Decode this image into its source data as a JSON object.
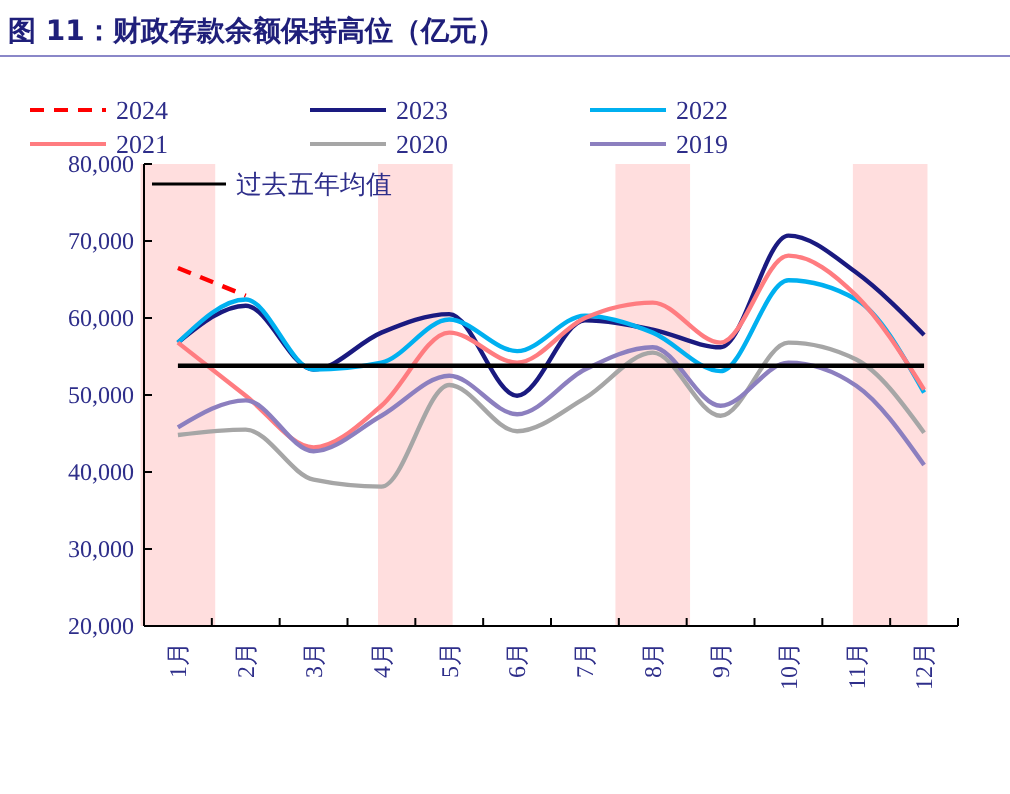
{
  "chart_data": {
    "type": "line",
    "title": "图 11：财政存款余额保持高位（亿元）",
    "categories": [
      "1月",
      "2月",
      "3月",
      "4月",
      "5月",
      "6月",
      "7月",
      "8月",
      "9月",
      "10月",
      "11月",
      "12月"
    ],
    "series": [
      {
        "name": "2024",
        "color": "#ff0000",
        "line_style": "dashed",
        "values": [
          66500,
          62900,
          null,
          null,
          null,
          null,
          null,
          null,
          null,
          null,
          null,
          null
        ]
      },
      {
        "name": "2023",
        "color": "#1a1a80",
        "values": [
          56800,
          61600,
          53300,
          58100,
          60500,
          49900,
          59700,
          58500,
          56200,
          70700,
          65900,
          57800
        ]
      },
      {
        "name": "2022",
        "color": "#00b0f0",
        "values": [
          56800,
          62400,
          53300,
          54200,
          59800,
          55700,
          60300,
          58100,
          53100,
          64900,
          62400,
          50300
        ]
      },
      {
        "name": "2021",
        "color": "#ff7c80",
        "values": [
          56800,
          49900,
          43200,
          48600,
          58100,
          54200,
          60000,
          62000,
          56800,
          68100,
          62900,
          50700
        ]
      },
      {
        "name": "2020",
        "color": "#a6a6a6",
        "values": [
          44800,
          45500,
          39000,
          38100,
          51300,
          45300,
          49600,
          55500,
          47300,
          56800,
          54600,
          45100
        ]
      },
      {
        "name": "2019",
        "color": "#8c7fbf",
        "values": [
          45800,
          49300,
          42700,
          47300,
          52500,
          47500,
          53300,
          56200,
          48600,
          54200,
          51200,
          40900
        ]
      },
      {
        "name": "过去五年均值",
        "color": "#000000",
        "values": [
          53800,
          53800,
          53800,
          53800,
          53800,
          53800,
          53800,
          53800,
          53800,
          53800,
          53800,
          53800
        ]
      }
    ],
    "ylim": [
      20000,
      80000
    ],
    "yticks": [
      {
        "value": 20000,
        "label": "20,000"
      },
      {
        "value": 30000,
        "label": "30,000"
      },
      {
        "value": 40000,
        "label": "40,000"
      },
      {
        "value": 50000,
        "label": "50,000"
      },
      {
        "value": 60000,
        "label": "60,000"
      },
      {
        "value": 70000,
        "label": "70,000"
      },
      {
        "value": 80000,
        "label": "80,000"
      }
    ],
    "bands": [
      {
        "axis": "x",
        "from": "1月",
        "to": "1月",
        "color": "#ffdede"
      },
      {
        "axis": "x",
        "from": "4月",
        "to": "5月",
        "color": "#ffdede"
      },
      {
        "axis": "x",
        "from": "8月",
        "to": "8月",
        "color": "#ffdede"
      },
      {
        "axis": "x",
        "from": "11月",
        "to": "12月",
        "color": "#ffdede"
      }
    ],
    "legend": "top",
    "grid": false,
    "marker": "none",
    "line_style": "solid"
  }
}
